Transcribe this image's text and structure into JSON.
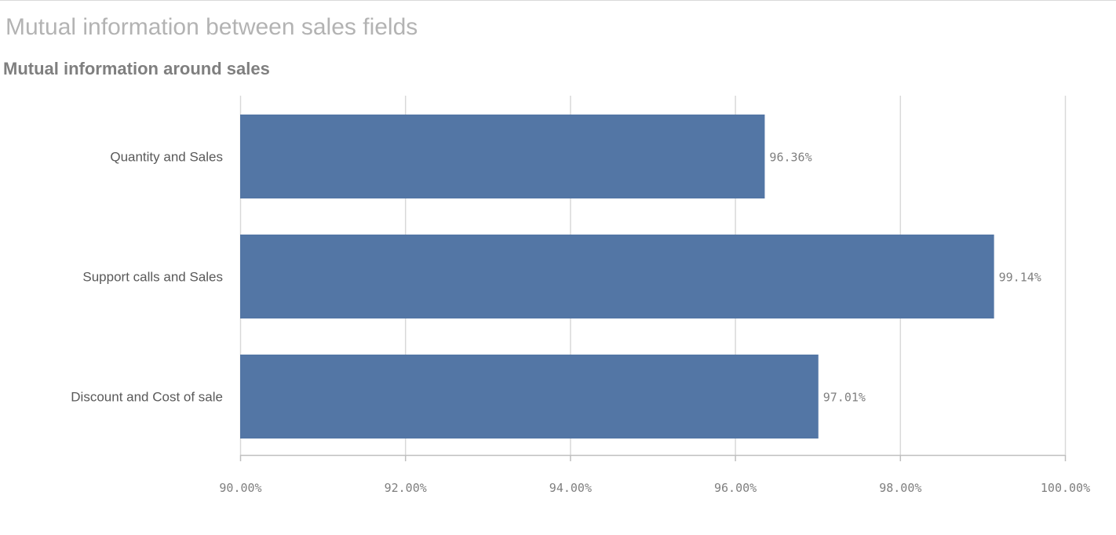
{
  "page": {
    "title": "Mutual information between sales fields"
  },
  "chart_data": {
    "type": "bar",
    "orientation": "horizontal",
    "title": "Mutual information around sales",
    "categories": [
      "Quantity and Sales",
      "Support calls and Sales",
      "Discount and Cost of sale"
    ],
    "values": [
      96.36,
      99.14,
      97.01
    ],
    "value_labels": [
      "96.36%",
      "99.14%",
      "97.01%"
    ],
    "xlim": [
      90,
      100
    ],
    "ticks": [
      90,
      92,
      94,
      96,
      98,
      100
    ],
    "tick_labels": [
      "90.00%",
      "92.00%",
      "94.00%",
      "96.00%",
      "98.00%",
      "100.00%"
    ],
    "xlabel": "",
    "ylabel": "",
    "grid": true,
    "legend": "none",
    "bar_color": "#5376a5",
    "grid_color": "#d9d9d9"
  }
}
